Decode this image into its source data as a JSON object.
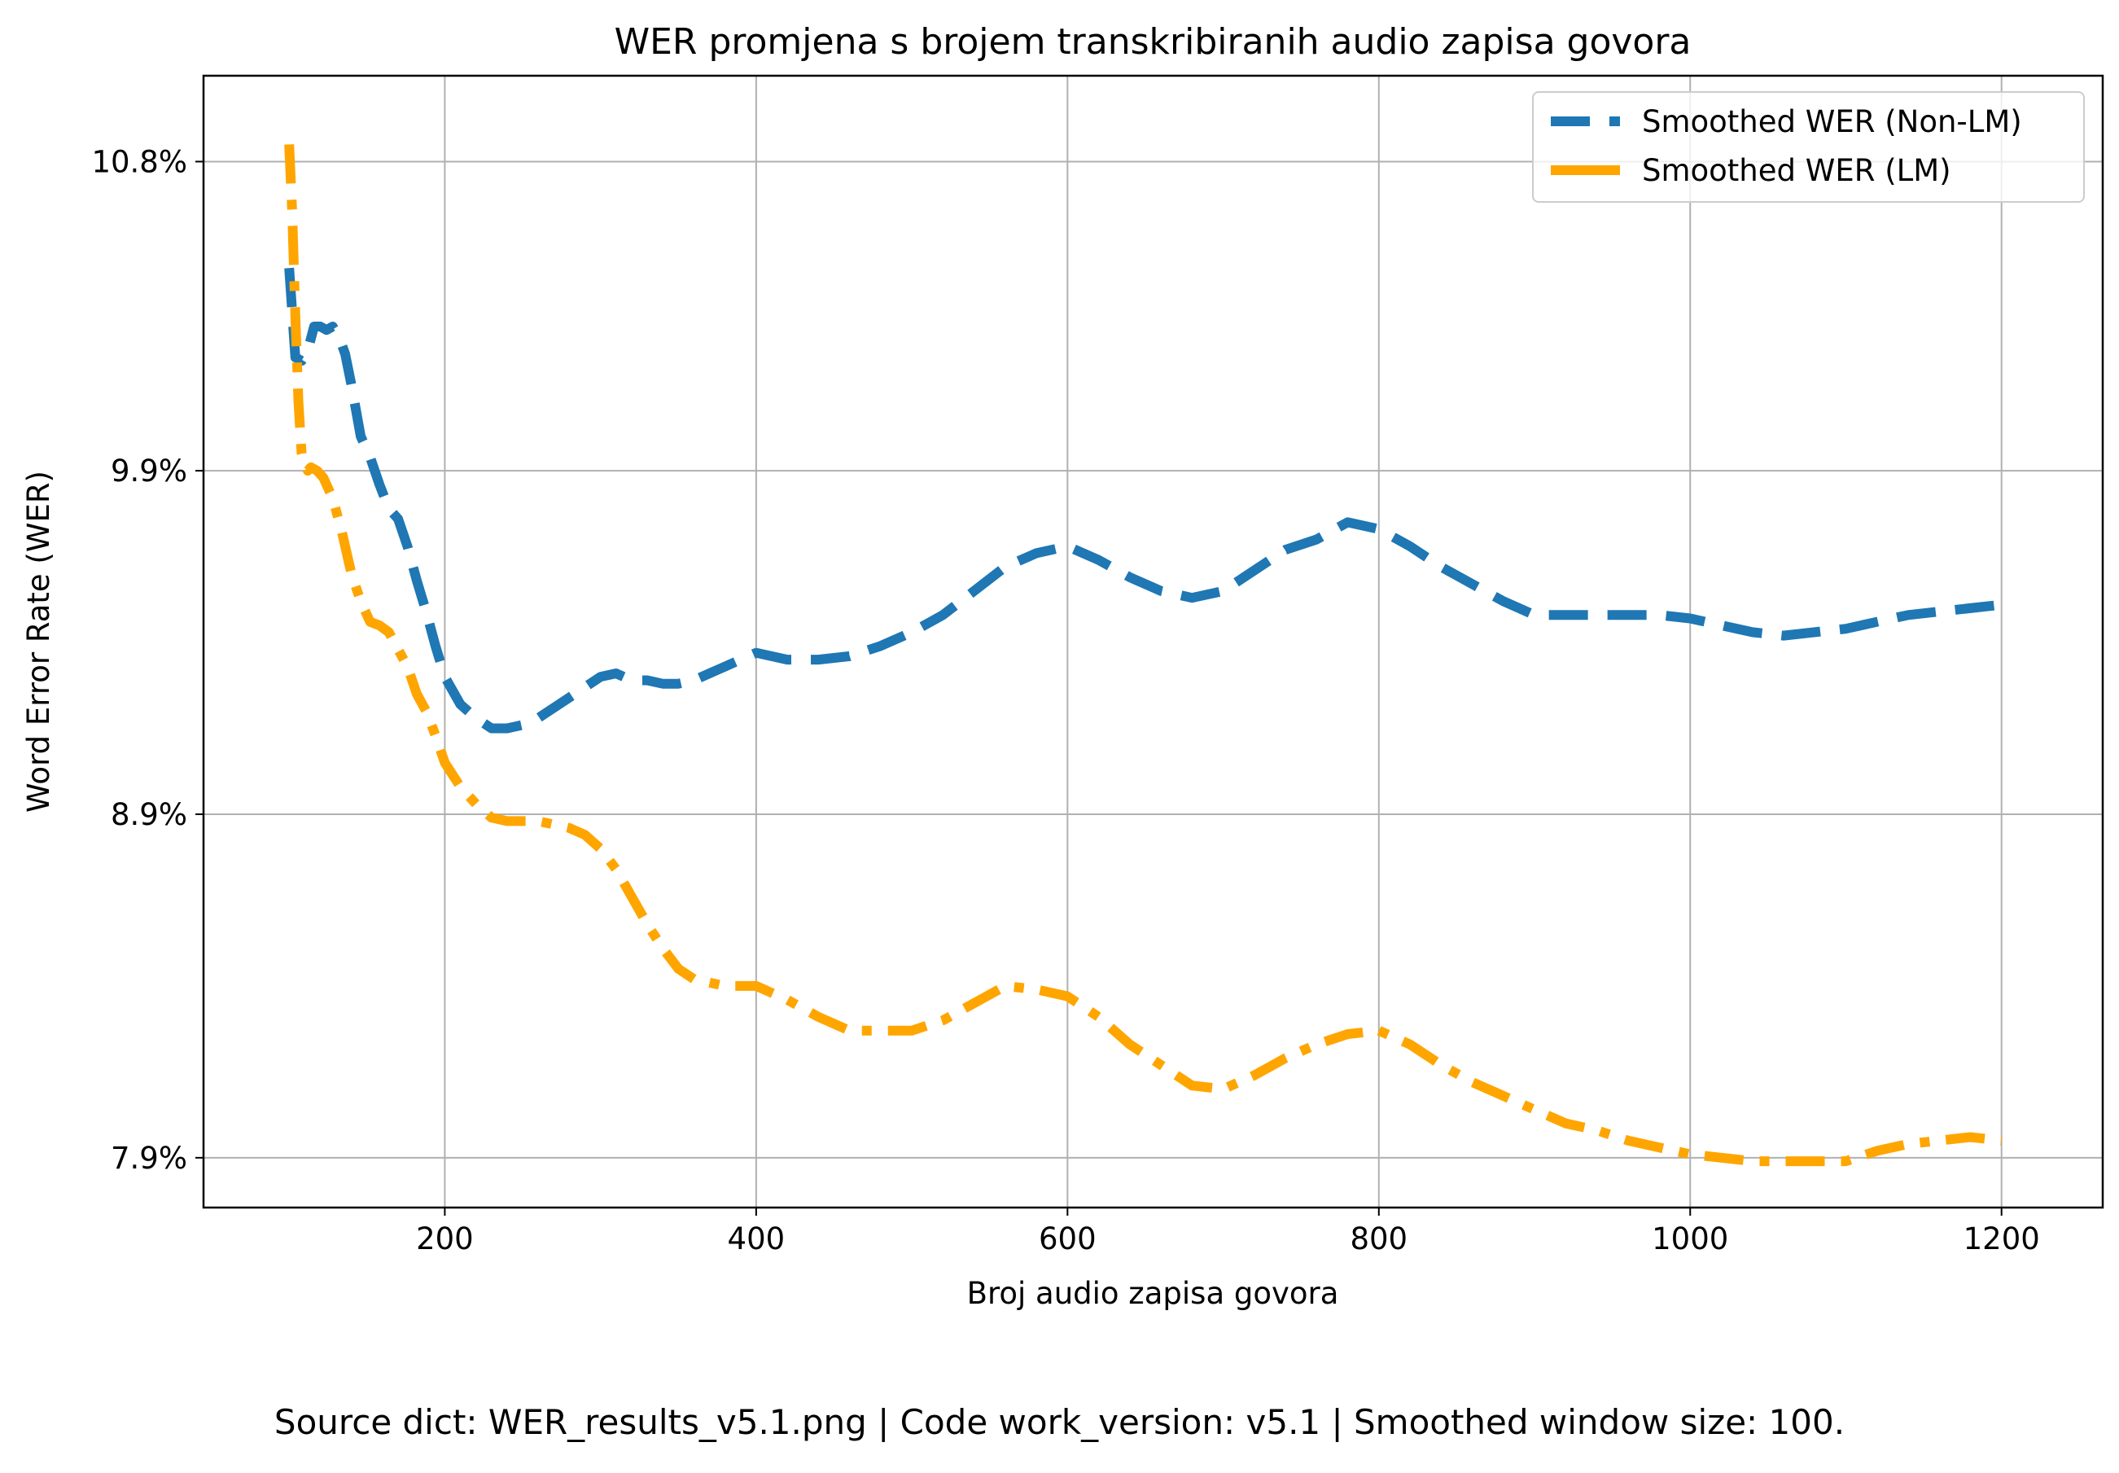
{
  "chart_data": {
    "type": "line",
    "title": "WER promjena s brojem transkribiranih audio zapisa govora",
    "xlabel": "Broj audio zapisa govora",
    "ylabel": "Word Error Rate (WER)",
    "xlim": [
      45,
      1265
    ],
    "ylim": [
      7.755,
      11.05
    ],
    "x_ticks": [
      200,
      400,
      600,
      800,
      1000,
      1200
    ],
    "x_tick_labels": [
      "200",
      "400",
      "600",
      "800",
      "1000",
      "1200"
    ],
    "y_ticks": [
      7.9,
      8.9,
      9.9,
      10.8
    ],
    "y_tick_labels": [
      "7.9%",
      "8.9%",
      "9.9%",
      "10.8%"
    ],
    "grid": true,
    "legend_position": "top-right",
    "series": [
      {
        "name": "Smoothed WER (Non-LM)",
        "color": "#1f77b4",
        "style": "dashed",
        "x": [
          100,
          104,
          108,
          112,
          116,
          120,
          124,
          128,
          132,
          136,
          140,
          146,
          152,
          158,
          164,
          170,
          176,
          182,
          188,
          194,
          200,
          210,
          220,
          230,
          240,
          250,
          260,
          270,
          280,
          290,
          300,
          310,
          320,
          330,
          340,
          350,
          360,
          370,
          380,
          390,
          400,
          420,
          440,
          460,
          480,
          500,
          520,
          540,
          560,
          580,
          600,
          620,
          640,
          660,
          680,
          700,
          720,
          740,
          760,
          780,
          800,
          820,
          840,
          860,
          880,
          900,
          920,
          940,
          960,
          980,
          1000,
          1020,
          1040,
          1060,
          1080,
          1100,
          1120,
          1140,
          1160,
          1180,
          1200
        ],
        "y": [
          10.49,
          10.23,
          10.22,
          10.25,
          10.32,
          10.32,
          10.31,
          10.32,
          10.29,
          10.24,
          10.15,
          10.0,
          9.94,
          9.86,
          9.79,
          9.76,
          9.68,
          9.58,
          9.49,
          9.39,
          9.3,
          9.22,
          9.18,
          9.15,
          9.15,
          9.16,
          9.18,
          9.21,
          9.24,
          9.27,
          9.3,
          9.31,
          9.29,
          9.29,
          9.28,
          9.28,
          9.29,
          9.31,
          9.33,
          9.35,
          9.37,
          9.35,
          9.35,
          9.36,
          9.39,
          9.43,
          9.48,
          9.55,
          9.62,
          9.66,
          9.68,
          9.64,
          9.59,
          9.55,
          9.53,
          9.55,
          9.61,
          9.67,
          9.7,
          9.75,
          9.73,
          9.68,
          9.62,
          9.57,
          9.52,
          9.48,
          9.48,
          9.48,
          9.48,
          9.48,
          9.47,
          9.45,
          9.43,
          9.42,
          9.43,
          9.44,
          9.46,
          9.48,
          9.49,
          9.5,
          9.51
        ]
      },
      {
        "name": "Smoothed WER (LM)",
        "color": "#ffa500",
        "style": "dashdot",
        "x": [
          100,
          102,
          104,
          106,
          108,
          110,
          112,
          114,
          118,
          122,
          128,
          134,
          140,
          146,
          152,
          158,
          164,
          170,
          176,
          182,
          188,
          194,
          200,
          210,
          220,
          230,
          240,
          250,
          260,
          270,
          280,
          290,
          300,
          310,
          320,
          330,
          340,
          350,
          360,
          370,
          380,
          390,
          400,
          420,
          440,
          460,
          480,
          500,
          520,
          540,
          560,
          580,
          600,
          620,
          640,
          660,
          680,
          700,
          720,
          740,
          760,
          780,
          800,
          820,
          840,
          860,
          880,
          900,
          920,
          940,
          960,
          980,
          1000,
          1020,
          1040,
          1060,
          1080,
          1100,
          1120,
          1140,
          1160,
          1180,
          1200
        ],
        "y": [
          10.85,
          10.65,
          10.35,
          10.1,
          9.95,
          9.92,
          9.9,
          9.91,
          9.9,
          9.88,
          9.82,
          9.72,
          9.6,
          9.52,
          9.46,
          9.45,
          9.43,
          9.38,
          9.33,
          9.25,
          9.2,
          9.13,
          9.05,
          8.98,
          8.93,
          8.89,
          8.88,
          8.88,
          8.88,
          8.87,
          8.86,
          8.84,
          8.8,
          8.74,
          8.66,
          8.58,
          8.51,
          8.45,
          8.42,
          8.41,
          8.4,
          8.4,
          8.4,
          8.36,
          8.31,
          8.27,
          8.27,
          8.27,
          8.3,
          8.35,
          8.4,
          8.39,
          8.37,
          8.31,
          8.23,
          8.17,
          8.11,
          8.1,
          8.14,
          8.19,
          8.23,
          8.26,
          8.27,
          8.23,
          8.17,
          8.12,
          8.08,
          8.04,
          8.0,
          7.98,
          7.95,
          7.93,
          7.91,
          7.9,
          7.89,
          7.89,
          7.89,
          7.89,
          7.92,
          7.94,
          7.95,
          7.96,
          7.95
        ]
      }
    ]
  },
  "caption": "Source dict: WER_results_v5.1.png | Code work_version: v5.1 | Smoothed window size: 100."
}
